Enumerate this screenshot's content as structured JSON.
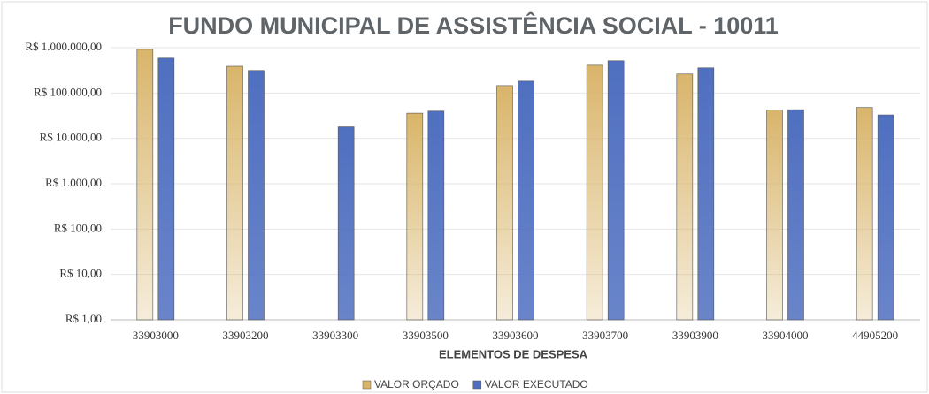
{
  "chart_data": {
    "type": "bar",
    "title": "FUNDO MUNICIPAL DE ASSISTÊNCIA SOCIAL - 10011",
    "x_label": "ELEMENTOS DE DESPESA",
    "categories": [
      "33903000",
      "33903200",
      "33903300",
      "33903500",
      "33903600",
      "33903700",
      "33903900",
      "33904000",
      "44905200"
    ],
    "series": [
      {
        "name": "VALOR ORÇADO",
        "color": "#d9b56a",
        "values": [
          920000,
          390000,
          null,
          36000,
          146000,
          410000,
          263000,
          42000,
          48000
        ]
      },
      {
        "name": "VALOR EXECUTADO",
        "color": "#4f6fc0",
        "values": [
          590000,
          315000,
          18000,
          40000,
          183000,
          515000,
          360000,
          43000,
          33000
        ]
      }
    ],
    "ylim": [
      1,
      1000000
    ],
    "log_scale": true,
    "yticks": [
      {
        "value": 1,
        "label": "R$ 1,00"
      },
      {
        "value": 10,
        "label": "R$ 10,00"
      },
      {
        "value": 100,
        "label": "R$ 100,00"
      },
      {
        "value": 1000,
        "label": "R$ 1.000,00"
      },
      {
        "value": 10000,
        "label": "R$ 10.000,00"
      },
      {
        "value": 100000,
        "label": "R$ 100.000,00"
      },
      {
        "value": 1000000,
        "label": "R$ 1.000.000,00"
      }
    ],
    "grid": true,
    "legend": "bottom"
  }
}
